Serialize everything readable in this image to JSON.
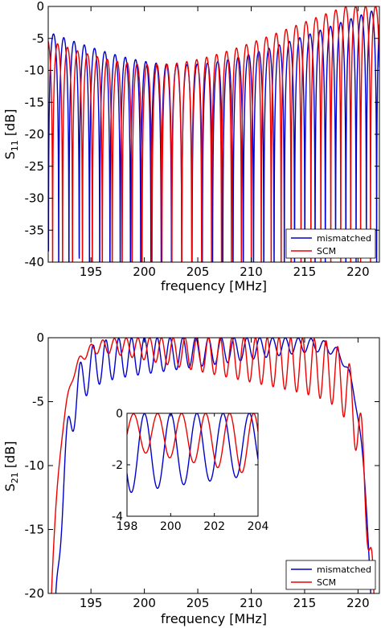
{
  "chart_data": [
    {
      "type": "line",
      "title": "",
      "xlabel": "frequency [MHz]",
      "ylabel": "S11 [dB]",
      "ylabel_main": "S",
      "ylabel_sub": "11",
      "ylabel_unit": " [dB]",
      "xlim": [
        191,
        222
      ],
      "ylim": [
        -40,
        0
      ],
      "xticks": [
        195,
        200,
        205,
        210,
        215,
        220
      ],
      "yticks": [
        0,
        -5,
        -10,
        -15,
        -20,
        -25,
        -30,
        -35,
        -40
      ],
      "grid": false,
      "legend": "bottom-right",
      "series": [
        {
          "name": "mismatched",
          "color": "#0000cc",
          "model": "s11_ripple",
          "center": 203.5,
          "halfwidth": 19,
          "period": 0.96,
          "phase": 0.0,
          "min_db": -40
        },
        {
          "name": "SCM",
          "color": "#ee0000",
          "model": "s11_ripple",
          "center": 200.8,
          "halfwidth": 18,
          "period": 0.93,
          "phase": 0.3,
          "min_db": -40
        }
      ]
    },
    {
      "type": "line",
      "title": "",
      "xlabel": "frequency [MHz]",
      "ylabel": "S21 [dB]",
      "ylabel_main": "S",
      "ylabel_sub": "21",
      "ylabel_unit": " [dB]",
      "xlim": [
        191,
        222
      ],
      "ylim": [
        -20,
        0
      ],
      "xticks": [
        195,
        200,
        205,
        210,
        215,
        220
      ],
      "yticks": [
        0,
        -5,
        -10,
        -15,
        -20
      ],
      "grid": false,
      "legend": "bottom-right",
      "series": [
        {
          "name": "mismatched",
          "color": "#0000cc",
          "model": "s21_ripple",
          "center": 206,
          "band": [
            191.6,
            221.3
          ],
          "period": 1.2,
          "depth": [
            3.8,
            0.4
          ]
        },
        {
          "name": "SCM",
          "color": "#ee0000",
          "model": "s21_ripple",
          "center": 200.5,
          "band": [
            191.2,
            221.6
          ],
          "period": 1.1,
          "depth": [
            0.2,
            5.5
          ]
        }
      ],
      "inset": {
        "xlim": [
          198,
          204
        ],
        "ylim": [
          -4,
          0
        ],
        "xticks": [
          198,
          200,
          202,
          204
        ],
        "yticks": [
          0,
          -2,
          -4
        ]
      }
    }
  ]
}
